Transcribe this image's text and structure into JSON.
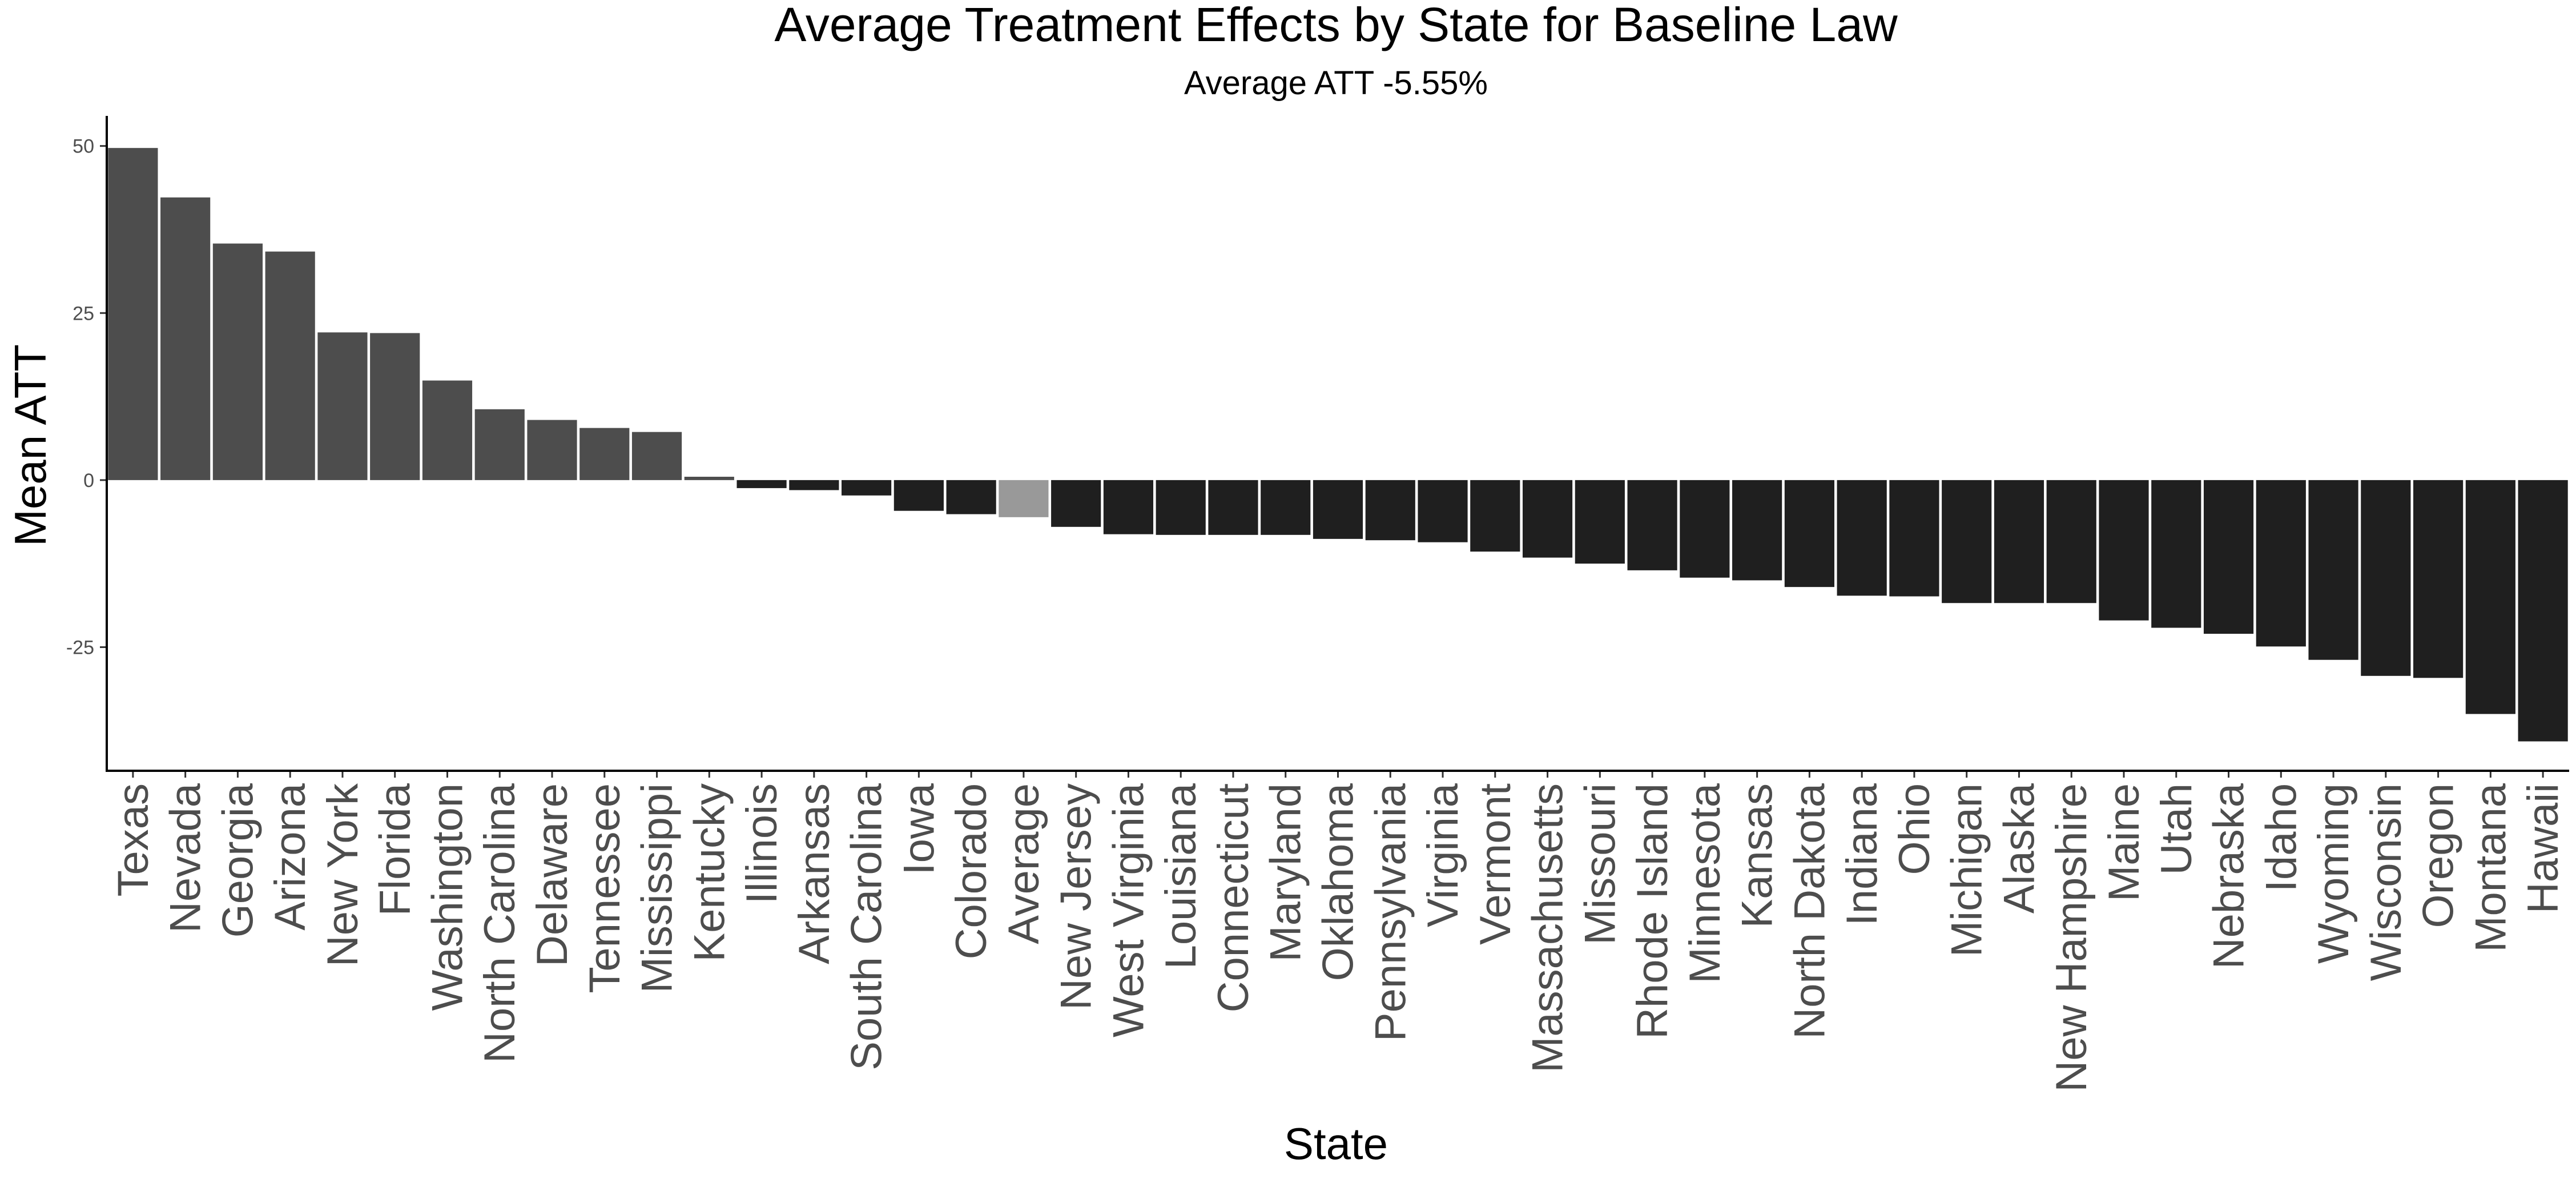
{
  "chart_data": {
    "type": "bar",
    "title": "Average Treatment Effects by State for Baseline Law",
    "subtitle": "Average ATT -5.55%",
    "xlabel": "State",
    "ylabel": "Mean ATT",
    "yticks": [
      50,
      25,
      0,
      -25
    ],
    "ytick_labels": [
      "50",
      "25",
      "0",
      "-25"
    ],
    "ylim": [
      -43.5,
      54.5
    ],
    "grid": false,
    "legend": "none",
    "colors": {
      "positive": "#4d4d4d",
      "average": "#999999",
      "negative": "#1f1f1f"
    },
    "categories": [
      "Texas",
      "Nevada",
      "Georgia",
      "Arizona",
      "New York",
      "Florida",
      "Washington",
      "North Carolina",
      "Delaware",
      "Tennessee",
      "Mississippi",
      "Kentucky",
      "Illinois",
      "Arkansas",
      "South Carolina",
      "Iowa",
      "Colorado",
      "Average",
      "New Jersey",
      "West Virginia",
      "Louisiana",
      "Connecticut",
      "Maryland",
      "Oklahoma",
      "Pennsylvania",
      "Virginia",
      "Vermont",
      "Massachusetts",
      "Missouri",
      "Rhode Island",
      "Minnesota",
      "Kansas",
      "North Dakota",
      "Indiana",
      "Ohio",
      "Michigan",
      "Alaska",
      "New Hampshire",
      "Maine",
      "Utah",
      "Nebraska",
      "Idaho",
      "Wyoming",
      "Wisconsin",
      "Oregon",
      "Montana",
      "Hawaii"
    ],
    "values": [
      49.7,
      42.3,
      35.4,
      34.2,
      22.1,
      22.0,
      14.9,
      10.6,
      9.0,
      7.8,
      7.2,
      0.5,
      -1.2,
      -1.5,
      -2.3,
      -4.6,
      -5.1,
      -5.55,
      -7.0,
      -8.1,
      -8.2,
      -8.2,
      -8.2,
      -8.8,
      -9.0,
      -9.3,
      -10.7,
      -11.6,
      -12.5,
      -13.5,
      -14.6,
      -15.0,
      -16.0,
      -17.3,
      -17.4,
      -18.4,
      -18.4,
      -18.4,
      -21.0,
      -22.1,
      -23.0,
      -24.9,
      -26.9,
      -29.3,
      -29.6,
      -35.0,
      -39.1
    ]
  }
}
